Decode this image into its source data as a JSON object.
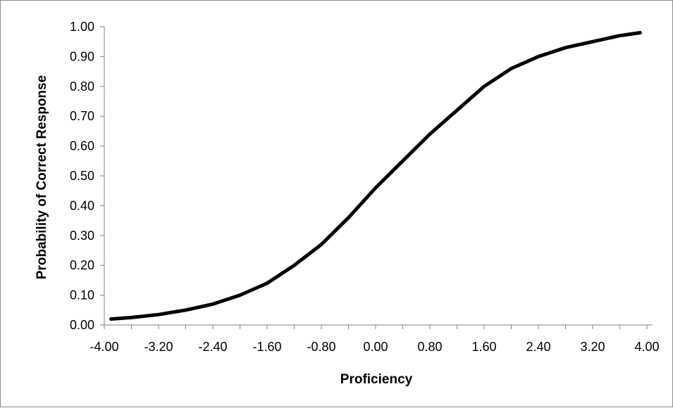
{
  "chart_data": {
    "type": "line",
    "title": "",
    "xlabel": "Proficiency",
    "ylabel": "Probability of Correct Response",
    "xlim": [
      -4.0,
      4.0
    ],
    "ylim": [
      0.0,
      1.0
    ],
    "grid": false,
    "legend": "none",
    "x_ticks": [
      "-4.00",
      "-3.20",
      "-2.40",
      "-1.60",
      "-0.80",
      "0.00",
      "0.80",
      "1.60",
      "2.40",
      "3.20",
      "4.00"
    ],
    "y_ticks": [
      "0.00",
      "0.10",
      "0.20",
      "0.30",
      "0.40",
      "0.50",
      "0.60",
      "0.70",
      "0.80",
      "0.90",
      "1.00"
    ],
    "series": [
      {
        "color": "#000000",
        "x": [
          -3.9,
          -3.6,
          -3.2,
          -2.8,
          -2.4,
          -2.0,
          -1.6,
          -1.2,
          -0.8,
          -0.4,
          0.0,
          0.4,
          0.8,
          1.2,
          1.6,
          2.0,
          2.4,
          2.8,
          3.2,
          3.6,
          3.9
        ],
        "y": [
          0.02,
          0.025,
          0.035,
          0.05,
          0.07,
          0.1,
          0.14,
          0.2,
          0.27,
          0.36,
          0.46,
          0.55,
          0.64,
          0.72,
          0.8,
          0.86,
          0.9,
          0.93,
          0.95,
          0.97,
          0.98
        ]
      }
    ]
  }
}
